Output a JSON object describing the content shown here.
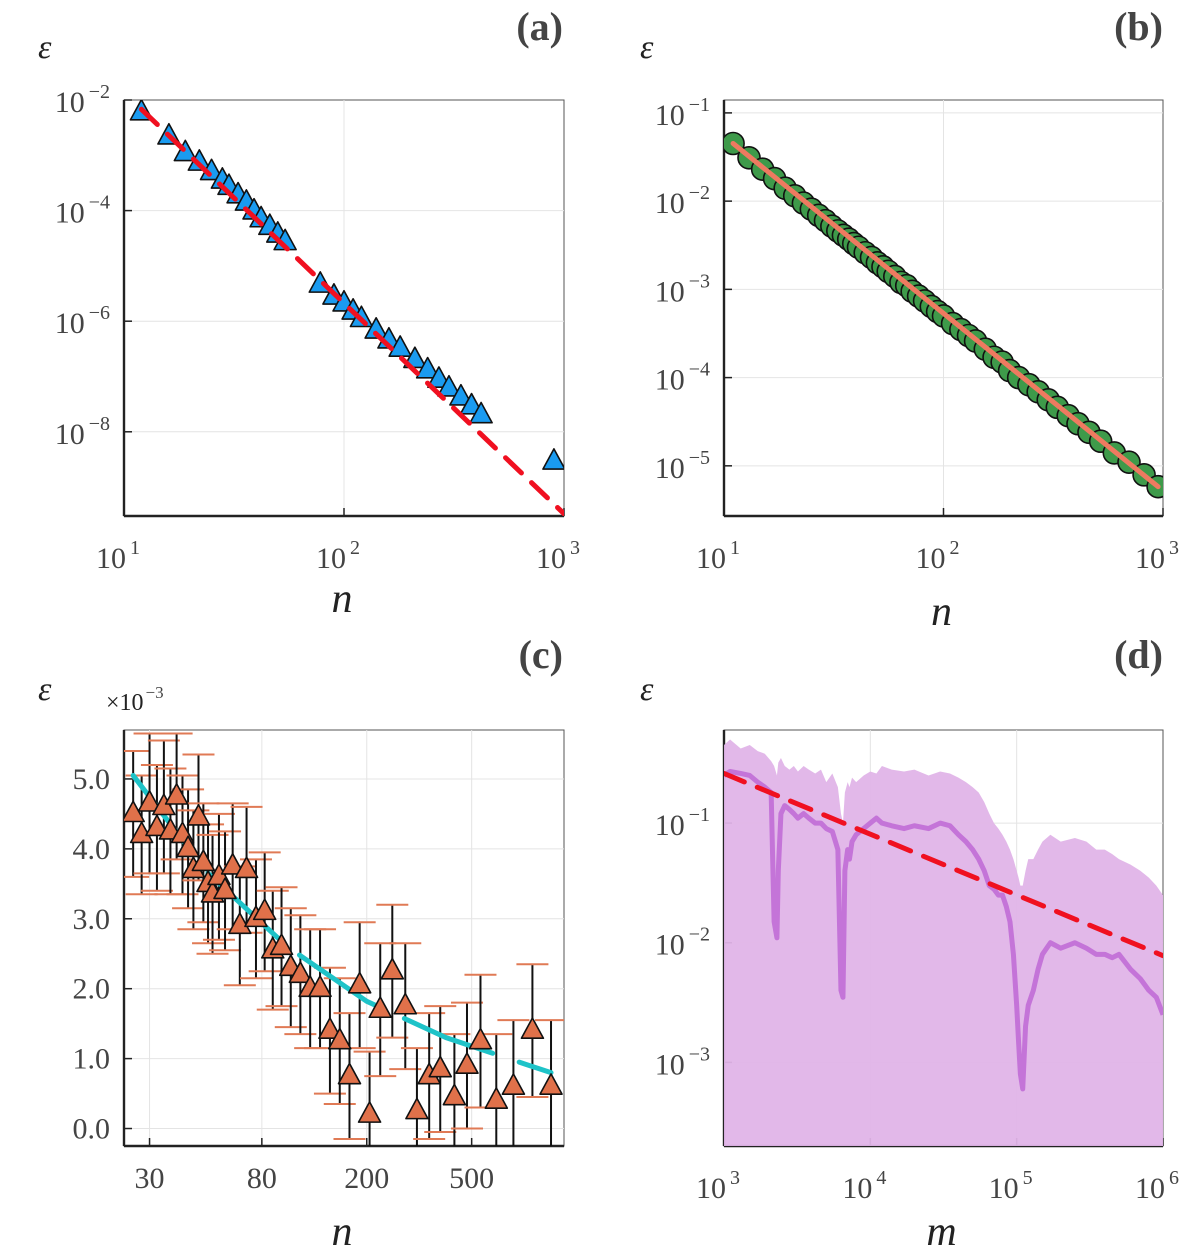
{
  "chart_data": [
    {
      "panel": "a",
      "type": "scatter",
      "panel_label": "(a)",
      "xlabel": "n",
      "ylabel": "ε",
      "xscale": "log",
      "yscale": "log",
      "xlim": [
        10,
        1000
      ],
      "ylim": [
        3e-10,
        0.01
      ],
      "x_ticks": [
        {
          "base": "10",
          "exp": "1",
          "value": 10
        },
        {
          "base": "10",
          "exp": "2",
          "value": 100
        },
        {
          "base": "10",
          "exp": "3",
          "value": 1000
        }
      ],
      "y_ticks": [
        {
          "base": "10",
          "exp": "−2",
          "value": 0.01
        },
        {
          "base": "10",
          "exp": "−4",
          "value": 0.0001
        },
        {
          "base": "10",
          "exp": "−6",
          "value": 1e-06
        },
        {
          "base": "10",
          "exp": "−8",
          "value": 1e-08
        }
      ],
      "marker": "triangle",
      "marker_color": "#1a9bf0",
      "points": {
        "x": [
          12,
          16,
          19,
          22,
          25,
          28,
          30,
          33,
          36,
          39,
          42,
          46,
          50,
          54,
          78,
          90,
          100,
          110,
          120,
          140,
          160,
          180,
          210,
          240,
          270,
          300,
          340,
          380,
          420,
          900
        ],
        "y": [
          0.006,
          0.0022,
          0.0011,
          0.00074,
          0.0005,
          0.00035,
          0.00027,
          0.00019,
          0.00014,
          9.7e-05,
          7e-05,
          5.1e-05,
          3.7e-05,
          2.7e-05,
          4.6e-06,
          2.8e-06,
          2.1e-06,
          1.5e-06,
          1.1e-06,
          6.8e-07,
          4.5e-07,
          3.2e-07,
          2e-07,
          1.3e-07,
          8.8e-08,
          6.1e-08,
          4.2e-08,
          2.9e-08,
          2e-08,
          2.9e-09
        ]
      },
      "fit": {
        "style": "dashed",
        "color": "#f01020",
        "x": [
          12,
          1000
        ],
        "y": [
          0.0068,
          3.3e-10
        ]
      }
    },
    {
      "panel": "b",
      "type": "scatter",
      "panel_label": "(b)",
      "xlabel": "n",
      "ylabel": "ε",
      "xscale": "log",
      "yscale": "log",
      "xlim": [
        10,
        1000
      ],
      "ylim": [
        2.7e-06,
        0.14
      ],
      "x_ticks": [
        {
          "base": "10",
          "exp": "1",
          "value": 10
        },
        {
          "base": "10",
          "exp": "2",
          "value": 100
        },
        {
          "base": "10",
          "exp": "3",
          "value": 1000
        }
      ],
      "y_ticks": [
        {
          "base": "10",
          "exp": "−1",
          "value": 0.1
        },
        {
          "base": "10",
          "exp": "−2",
          "value": 0.01
        },
        {
          "base": "10",
          "exp": "−3",
          "value": 0.001
        },
        {
          "base": "10",
          "exp": "−4",
          "value": 0.0001
        },
        {
          "base": "10",
          "exp": "−5",
          "value": 1e-05
        }
      ],
      "marker": "circle",
      "marker_color": "#3e9a4a",
      "points": {
        "x": [
          11,
          13,
          15,
          17,
          19,
          21,
          23,
          25,
          27,
          29,
          31,
          33,
          35,
          37,
          39,
          41,
          44,
          47,
          50,
          53,
          56,
          60,
          64,
          68,
          72,
          77,
          82,
          88,
          94,
          100,
          110,
          120,
          130,
          140,
          155,
          170,
          185,
          200,
          220,
          245,
          270,
          300,
          330,
          370,
          410,
          460,
          520,
          600,
          700,
          820,
          950
        ],
        "y": [
          0.045,
          0.031,
          0.023,
          0.018,
          0.014,
          0.0115,
          0.0095,
          0.0081,
          0.0069,
          0.006,
          0.0052,
          0.0046,
          0.0041,
          0.0037,
          0.0033,
          0.003,
          0.0026,
          0.0023,
          0.002,
          0.0018,
          0.0016,
          0.0014,
          0.0012,
          0.0011,
          0.00095,
          0.00084,
          0.00074,
          0.00064,
          0.00056,
          0.0005,
          0.00041,
          0.00035,
          0.0003,
          0.00026,
          0.00021,
          0.00017,
          0.00015,
          0.00012,
          0.0001,
          8.3e-05,
          6.9e-05,
          5.6e-05,
          4.6e-05,
          3.7e-05,
          3e-05,
          2.4e-05,
          1.9e-05,
          1.4e-05,
          1.1e-05,
          7.9e-06,
          5.8e-06
        ]
      },
      "fit": {
        "style": "solid",
        "color": "#ee7a60",
        "x": [
          11,
          950
        ],
        "y": [
          0.045,
          5.8e-06
        ]
      }
    },
    {
      "panel": "c",
      "type": "scatter",
      "panel_label": "(c)",
      "xlabel": "n",
      "ylabel": "ε",
      "multiplier_base": "×10",
      "multiplier_exp": "−3",
      "xscale": "log",
      "yscale": "linear",
      "xlim": [
        24,
        1120
      ],
      "ylim": [
        -0.25,
        5.7
      ],
      "x_ticks": [
        {
          "label": "30",
          "value": 30
        },
        {
          "label": "80",
          "value": 80
        },
        {
          "label": "200",
          "value": 200
        },
        {
          "label": "500",
          "value": 500
        }
      ],
      "y_ticks": [
        {
          "label": "5.0",
          "value": 5.0
        },
        {
          "label": "4.0",
          "value": 4.0
        },
        {
          "label": "3.0",
          "value": 3.0
        },
        {
          "label": "2.0",
          "value": 2.0
        },
        {
          "label": "1.0",
          "value": 1.0
        },
        {
          "label": "0.0",
          "value": 0.0
        }
      ],
      "marker": "triangle",
      "marker_color": "#e0714a",
      "errorbar_color": "#e07a55",
      "points": {
        "x": [
          26,
          28,
          30,
          32,
          34,
          36,
          38,
          40,
          42,
          44,
          46,
          48,
          50,
          52,
          55,
          58,
          62,
          66,
          70,
          76,
          82,
          88,
          95,
          103,
          112,
          122,
          133,
          145,
          158,
          172,
          188,
          205,
          225,
          250,
          280,
          310,
          345,
          380,
          430,
          480,
          540,
          620,
          720,
          850,
          1000
        ],
        "y": [
          4.5,
          4.2,
          4.65,
          4.3,
          4.6,
          4.25,
          4.75,
          4.2,
          4.0,
          3.7,
          4.45,
          3.8,
          3.5,
          3.35,
          3.6,
          3.4,
          3.75,
          2.9,
          3.7,
          3.0,
          3.1,
          2.55,
          2.6,
          2.3,
          2.2,
          2.0,
          2.0,
          1.4,
          1.25,
          0.75,
          2.05,
          0.2,
          1.7,
          2.25,
          1.75,
          0.25,
          0.75,
          0.85,
          0.45,
          0.9,
          1.25,
          0.4,
          0.6,
          1.4,
          0.6
        ],
        "err": [
          0.9,
          0.85,
          1.0,
          0.9,
          0.95,
          0.9,
          0.9,
          0.85,
          0.85,
          0.85,
          0.9,
          0.85,
          0.85,
          0.85,
          0.9,
          0.85,
          0.9,
          0.85,
          0.9,
          0.85,
          0.85,
          0.85,
          0.85,
          0.85,
          0.85,
          0.85,
          0.85,
          0.9,
          0.9,
          0.9,
          0.9,
          0.9,
          0.95,
          0.95,
          0.9,
          0.9,
          0.9,
          0.9,
          0.9,
          0.9,
          0.95,
          0.95,
          0.95,
          0.95,
          0.95
        ]
      },
      "fit": {
        "style": "solid",
        "color": "#1ec3c8",
        "x": [
          26,
          50,
          100,
          200,
          400,
          800,
          1000
        ],
        "y": [
          5.05,
          3.65,
          2.6,
          1.82,
          1.3,
          0.92,
          0.8
        ]
      }
    },
    {
      "panel": "d",
      "type": "line",
      "panel_label": "(d)",
      "xlabel": "m",
      "ylabel": "ε",
      "xscale": "log",
      "yscale": "log",
      "xlim": [
        1000,
        1000000
      ],
      "ylim": [
        0.0002,
        0.6
      ],
      "x_ticks": [
        {
          "base": "10",
          "exp": "3",
          "value": 1000
        },
        {
          "base": "10",
          "exp": "4",
          "value": 10000
        },
        {
          "base": "10",
          "exp": "5",
          "value": 100000
        },
        {
          "base": "10",
          "exp": "6",
          "value": 1000000
        }
      ],
      "y_ticks": [
        {
          "base": "10",
          "exp": "−1",
          "value": 0.1
        },
        {
          "base": "10",
          "exp": "−2",
          "value": 0.01
        },
        {
          "base": "10",
          "exp": "−3",
          "value": 0.001
        }
      ],
      "line_color": "#c474d8",
      "band_color": "#e0b4e8",
      "series": {
        "x": [
          1000,
          1100,
          1300,
          1500,
          1700,
          1900,
          2100,
          2200,
          2300,
          2350,
          2450,
          2600,
          2800,
          3000,
          3200,
          3500,
          3800,
          4200,
          4600,
          5000,
          5500,
          6000,
          6300,
          6500,
          6700,
          7000,
          7200,
          7500,
          8000,
          9000,
          10000,
          11000,
          12000,
          14000,
          17000,
          20000,
          25000,
          30000,
          35000,
          40000,
          45000,
          50000,
          55000,
          60000,
          65000,
          70000,
          75000,
          80000,
          85000,
          90000,
          95000,
          100000,
          103000,
          106000,
          110000,
          115000,
          120000,
          130000,
          140000,
          150000,
          170000,
          200000,
          250000,
          300000,
          350000,
          400000,
          450000,
          500000,
          600000,
          700000,
          800000,
          900000,
          1000000
        ],
        "y": [
          0.25,
          0.27,
          0.26,
          0.25,
          0.22,
          0.2,
          0.18,
          0.015,
          0.011,
          0.04,
          0.12,
          0.14,
          0.13,
          0.12,
          0.11,
          0.12,
          0.11,
          0.1,
          0.1,
          0.09,
          0.085,
          0.06,
          0.004,
          0.0035,
          0.04,
          0.06,
          0.05,
          0.07,
          0.08,
          0.09,
          0.1,
          0.11,
          0.1,
          0.095,
          0.09,
          0.095,
          0.09,
          0.1,
          0.095,
          0.08,
          0.07,
          0.06,
          0.05,
          0.04,
          0.03,
          0.028,
          0.025,
          0.025,
          0.02,
          0.015,
          0.008,
          0.003,
          0.0015,
          0.0008,
          0.0006,
          0.002,
          0.003,
          0.004,
          0.006,
          0.008,
          0.01,
          0.009,
          0.01,
          0.009,
          0.008,
          0.008,
          0.0075,
          0.008,
          0.006,
          0.005,
          0.004,
          0.0035,
          0.0025
        ],
        "upper": [
          0.45,
          0.5,
          0.42,
          0.45,
          0.4,
          0.38,
          0.33,
          0.3,
          0.25,
          0.32,
          0.35,
          0.3,
          0.28,
          0.3,
          0.27,
          0.3,
          0.28,
          0.26,
          0.28,
          0.22,
          0.26,
          0.2,
          0.12,
          0.1,
          0.18,
          0.22,
          0.2,
          0.24,
          0.22,
          0.25,
          0.27,
          0.26,
          0.3,
          0.28,
          0.27,
          0.28,
          0.25,
          0.27,
          0.26,
          0.24,
          0.22,
          0.2,
          0.18,
          0.15,
          0.12,
          0.1,
          0.09,
          0.08,
          0.07,
          0.06,
          0.05,
          0.04,
          0.035,
          0.03,
          0.03,
          0.04,
          0.05,
          0.05,
          0.06,
          0.07,
          0.08,
          0.07,
          0.075,
          0.07,
          0.06,
          0.06,
          0.055,
          0.05,
          0.045,
          0.04,
          0.035,
          0.03,
          0.025
        ]
      },
      "fit": {
        "style": "dashed",
        "color": "#f01020",
        "x": [
          1000,
          1000000
        ],
        "y": [
          0.26,
          0.0078
        ]
      }
    }
  ]
}
